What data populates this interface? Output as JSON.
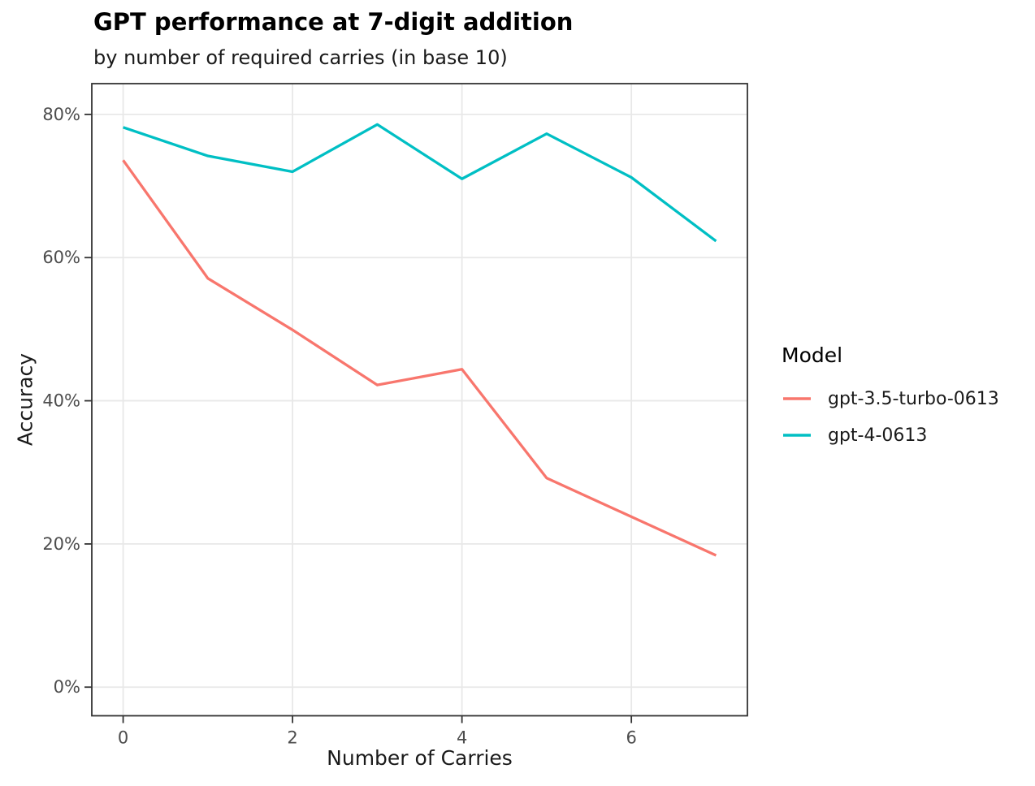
{
  "legend": {
    "title": "Model"
  },
  "chart_data": {
    "type": "line",
    "title": "GPT performance at 7-digit addition",
    "subtitle": "by number of required carries (in base 10)",
    "xlabel": "Number of Carries",
    "ylabel": "Accuracy",
    "x": [
      0,
      1,
      2,
      3,
      4,
      5,
      6,
      7
    ],
    "series": [
      {
        "name": "gpt-3.5-turbo-0613",
        "color": "#F8766D",
        "values": [
          73.6,
          57.1,
          49.9,
          42.2,
          44.4,
          29.2,
          23.8,
          18.4
        ]
      },
      {
        "name": "gpt-4-0613",
        "color": "#00BFC4",
        "values": [
          78.2,
          74.2,
          72.0,
          78.6,
          71.0,
          77.3,
          71.2,
          62.3
        ]
      }
    ],
    "x_ticks": [
      0,
      2,
      4,
      6
    ],
    "x_tick_labels": [
      "0",
      "2",
      "4",
      "6"
    ],
    "y_ticks": [
      0,
      20,
      40,
      60,
      80
    ],
    "y_tick_labels": [
      "0%",
      "20%",
      "40%",
      "60%",
      "80%"
    ],
    "xlim": [
      -0.37,
      7.37
    ],
    "ylim": [
      -4.0,
      84.3
    ],
    "grid": true,
    "legend_position": "right",
    "styles": {
      "grid_color": "#E8E8E8",
      "panel_border_color": "#333333",
      "tick_color": "#333333",
      "tick_label_color": "#4D4D4D",
      "text_color": "#1A1A1A",
      "background": "#FFFFFF",
      "series_line_width": 3.3
    }
  }
}
